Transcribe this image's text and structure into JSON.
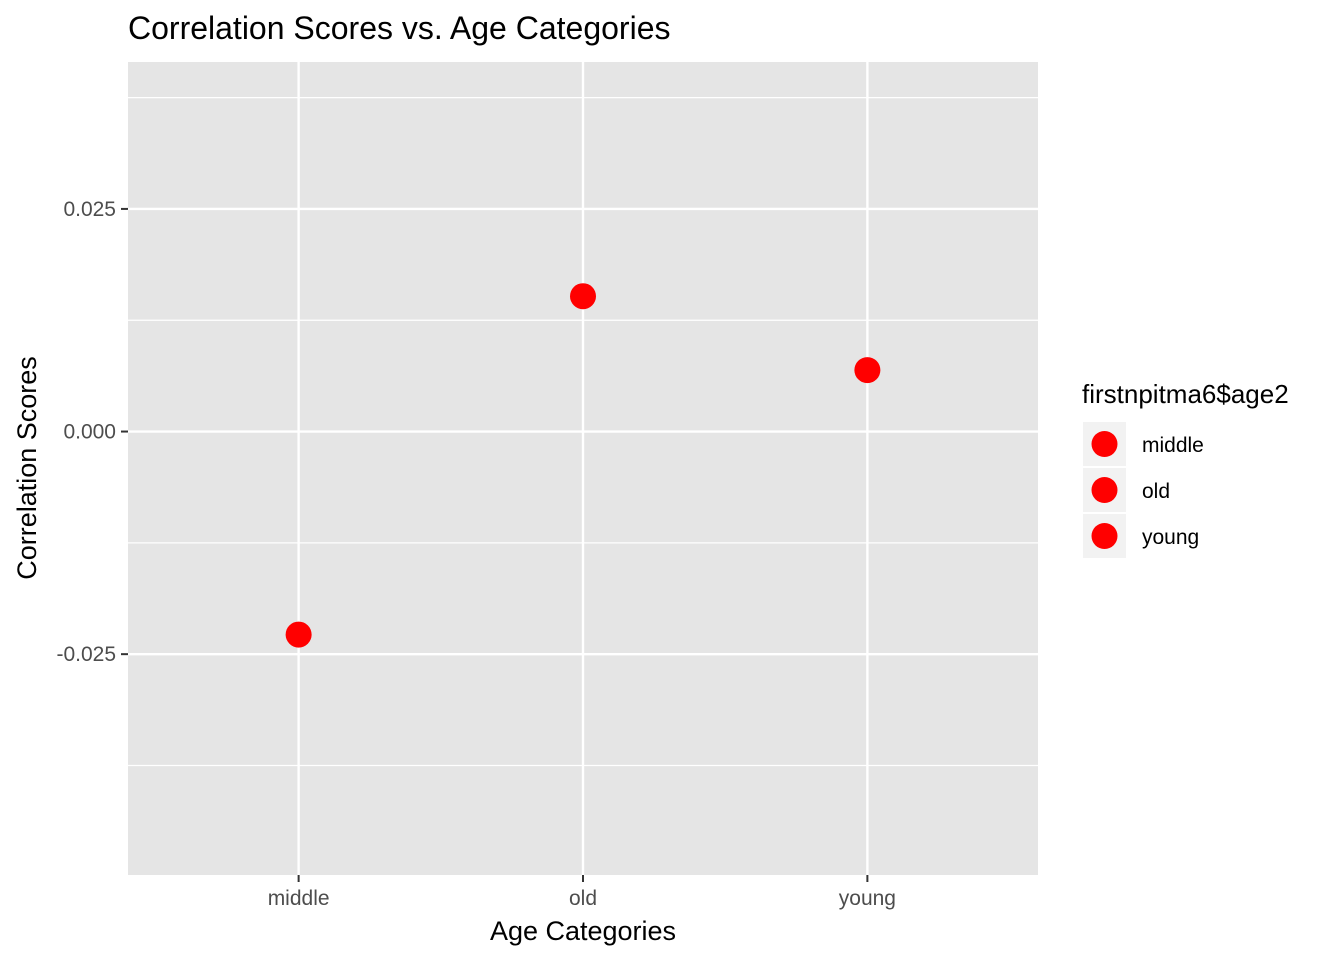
{
  "chart_data": {
    "type": "scatter",
    "title": "Correlation Scores vs. Age Categories",
    "xlabel": "Age Categories",
    "ylabel": "Correlation Scores",
    "categories": [
      "middle",
      "old",
      "young"
    ],
    "values": [
      -0.0228,
      0.0152,
      0.0069
    ],
    "ylim": [
      -0.0498,
      0.0415
    ],
    "y_ticks": [
      -0.025,
      0.0,
      0.025
    ],
    "y_tick_labels": [
      "-0.025",
      "0.000",
      "0.025"
    ],
    "grid": true,
    "point_color": "#ff0000",
    "panel_background": "#e5e5e5",
    "legend": {
      "title": "firstnpitma6$age2",
      "placement": "right",
      "entries": [
        "middle",
        "old",
        "young"
      ]
    }
  }
}
